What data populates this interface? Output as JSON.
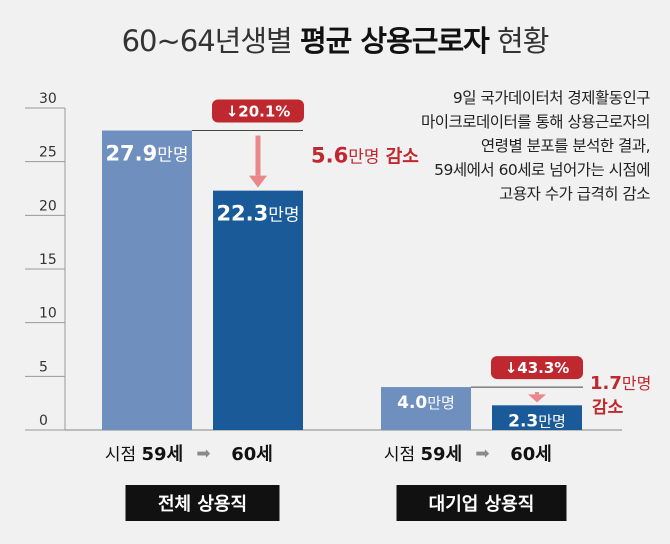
{
  "chart_data": {
    "type": "bar",
    "title_prefix": "60~64년생별",
    "title_bold": "평균 상용근로자",
    "title_suffix": "현황",
    "ylim": [
      0,
      30
    ],
    "yticks": [
      0,
      5,
      10,
      15,
      20,
      25,
      30
    ],
    "unit": "만명",
    "groups": [
      {
        "name": "전체 상용직",
        "bars": [
          {
            "label": "시점 59세",
            "value": 27.9,
            "value_label": "27.9",
            "color": "#6f8fbf"
          },
          {
            "label": "60세",
            "value": 22.3,
            "value_label": "22.3",
            "color": "#1a5a99"
          }
        ],
        "decrease_pct": "↓20.1%",
        "decrease_amount": "5.6",
        "decrease_unit": "만명",
        "decrease_word": "감소"
      },
      {
        "name": "대기업 상용직",
        "bars": [
          {
            "label": "시점 59세",
            "value": 4.0,
            "value_label": "4.0",
            "color": "#6f8fbf"
          },
          {
            "label": "60세",
            "value": 2.3,
            "value_label": "2.3",
            "color": "#1a5a99"
          }
        ],
        "decrease_pct": "↓43.3%",
        "decrease_amount": "1.7",
        "decrease_unit": "만명",
        "decrease_word": "감소"
      }
    ],
    "arrow_symbol": "➡"
  },
  "note": [
    "9일 국가데이터처 경제활동인구",
    "마이크로데이터를 통해 상용근로자의",
    "연령별 분포를 분석한 결과,",
    "59세에서 60세로 넘어가는 시점에",
    "고용자 수가 급격히 감소"
  ],
  "colors": {
    "bar_before": "#6f8fbf",
    "bar_after": "#1a5a99",
    "accent_red": "#c0282f",
    "arrow_pink": "#e9878a",
    "group_label_bg": "#111111"
  }
}
